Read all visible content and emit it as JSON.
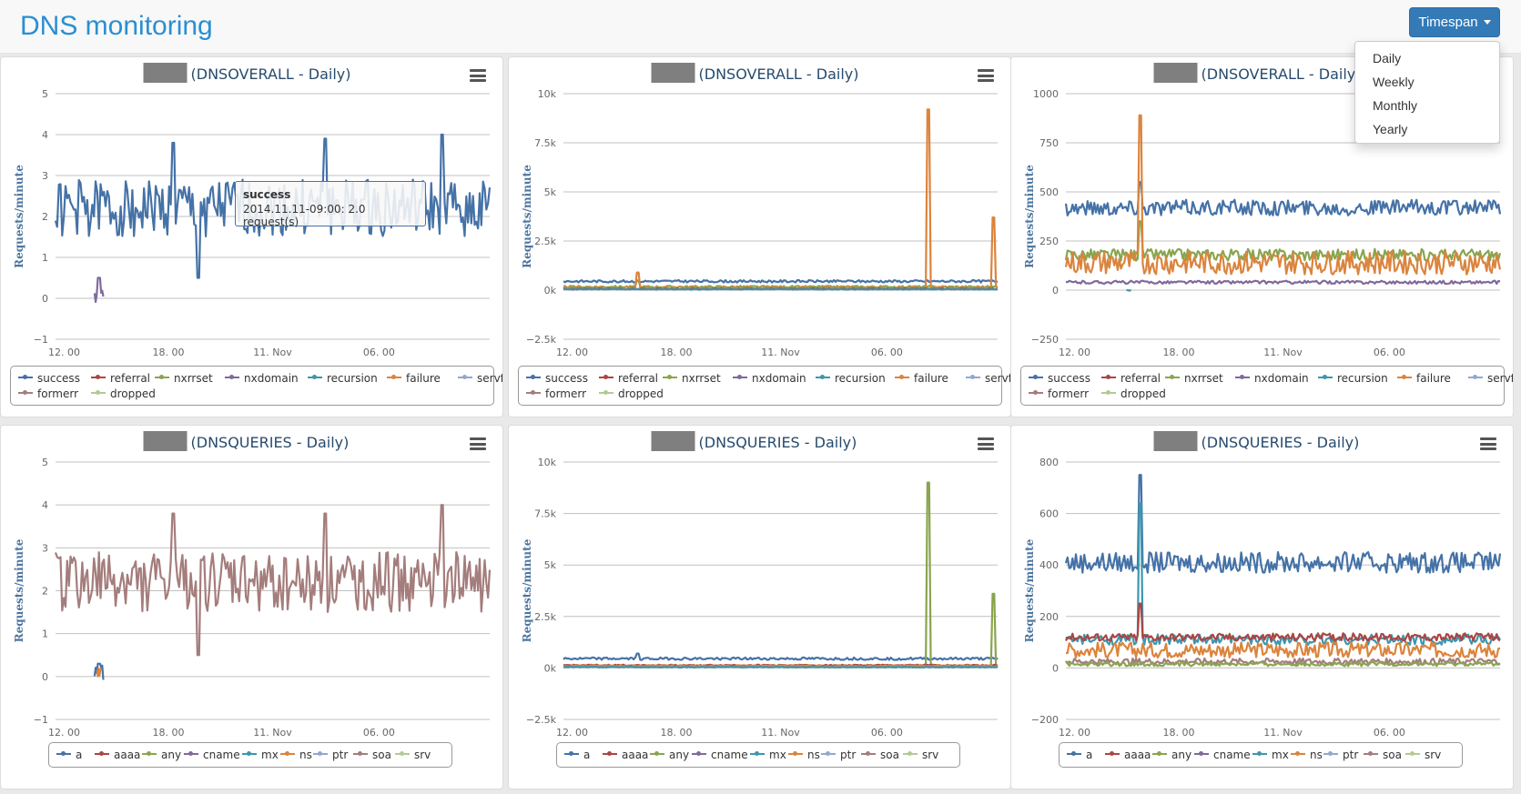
{
  "header": {
    "title": "DNS monitoring",
    "timespan_label": "Timespan",
    "timespan_options": [
      "Daily",
      "Weekly",
      "Monthly",
      "Yearly"
    ]
  },
  "tooltip": {
    "series": "success",
    "text": "2014.11.11-09:00: 2.0 request(s)"
  },
  "chart_data": [
    {
      "type": "line",
      "title": "(DNSOVERALL - Daily)",
      "ylabel": "Requests/minute",
      "ylim": [
        -1,
        5
      ],
      "yticks": [
        -1,
        0,
        1,
        2,
        3,
        4,
        5
      ],
      "ytick_labels": [
        "−1",
        "0",
        "1",
        "2",
        "3",
        "4",
        "5"
      ],
      "xtick_labels": [
        "12. 00",
        "18. 00",
        "11. Nov",
        "06. 00"
      ],
      "legend": [
        "success",
        "referral",
        "nxrrset",
        "nxdomain",
        "recursion",
        "failure",
        "servfail",
        "formerr",
        "dropped"
      ],
      "series": [
        {
          "name": "success",
          "color": "#4572a7",
          "base": 2.2,
          "noise": 0.7,
          "spikes": [
            [
              0.27,
              3.8
            ],
            [
              0.62,
              3.9
            ],
            [
              0.89,
              4.0
            ],
            [
              0.33,
              0.5
            ]
          ]
        },
        {
          "name": "nxdomain",
          "color": "#80699b",
          "partial": [
            0.09,
            0.11
          ],
          "base": 0.1,
          "noise": 0.2,
          "spikes": [
            [
              0.1,
              0.5
            ]
          ]
        }
      ]
    },
    {
      "type": "line",
      "title": "(DNSOVERALL - Daily)",
      "ylabel": "Requests/minute",
      "ylim": [
        -2500,
        10000
      ],
      "yticks": [
        -2500,
        0,
        2500,
        5000,
        7500,
        10000
      ],
      "ytick_labels": [
        "−2.5k",
        "0k",
        "2.5k",
        "5k",
        "7.5k",
        "10k"
      ],
      "xtick_labels": [
        "12. 00",
        "18. 00",
        "11. Nov",
        "06. 00"
      ],
      "legend": [
        "success",
        "referral",
        "nxrrset",
        "nxdomain",
        "recursion",
        "failure",
        "servfail",
        "formerr",
        "dropped"
      ],
      "series": [
        {
          "name": "success",
          "color": "#4572a7",
          "base": 450,
          "noise": 60,
          "spikes": []
        },
        {
          "name": "nxrrset",
          "color": "#89a54e",
          "base": 170,
          "noise": 50,
          "spikes": [
            [
              0.17,
              500
            ]
          ]
        },
        {
          "name": "failure",
          "color": "#db843d",
          "base": 120,
          "noise": 60,
          "spikes": [
            [
              0.17,
              900
            ],
            [
              0.84,
              9200
            ],
            [
              0.99,
              3700
            ]
          ]
        },
        {
          "name": "referral",
          "color": "#aa4643",
          "base": 60,
          "noise": 30,
          "spikes": []
        },
        {
          "name": "recursion",
          "color": "#3d96ae",
          "base": 40,
          "noise": 20,
          "spikes": []
        }
      ]
    },
    {
      "type": "line",
      "title": "(DNSOVERALL - Daily)",
      "ylabel": "Requests/minute",
      "ylim": [
        -250,
        1000
      ],
      "yticks": [
        -250,
        0,
        250,
        500,
        750,
        1000
      ],
      "ytick_labels": [
        "−250",
        "0",
        "250",
        "500",
        "750",
        "1000"
      ],
      "xtick_labels": [
        "12. 00",
        "18. 00",
        "11. Nov",
        "06. 00"
      ],
      "legend": [
        "success",
        "referral",
        "nxrrset",
        "nxdomain",
        "recursion",
        "failure",
        "servfail",
        "formerr",
        "dropped"
      ],
      "series": [
        {
          "name": "success",
          "color": "#4572a7",
          "base": 420,
          "noise": 40,
          "spikes": [
            [
              0.17,
              550
            ]
          ]
        },
        {
          "name": "nxrrset",
          "color": "#89a54e",
          "base": 180,
          "noise": 30,
          "spikes": [
            [
              0.17,
              350
            ]
          ]
        },
        {
          "name": "failure",
          "color": "#db843d",
          "base": 140,
          "noise": 60,
          "spikes": [
            [
              0.17,
              890
            ]
          ]
        },
        {
          "name": "nxdomain",
          "color": "#80699b",
          "base": 40,
          "noise": 8,
          "spikes": []
        },
        {
          "name": "recursion",
          "color": "#3d96ae",
          "partial": [
            0.14,
            0.15
          ],
          "base": 0,
          "noise": 3,
          "spikes": []
        }
      ]
    },
    {
      "type": "line",
      "title": "(DNSQUERIES - Daily)",
      "ylabel": "Requests/minute",
      "ylim": [
        -1,
        5
      ],
      "yticks": [
        -1,
        0,
        1,
        2,
        3,
        4,
        5
      ],
      "ytick_labels": [
        "−1",
        "0",
        "1",
        "2",
        "3",
        "4",
        "5"
      ],
      "xtick_labels": [
        "12. 00",
        "18. 00",
        "11. Nov",
        "06. 00"
      ],
      "legend": [
        "a",
        "aaaa",
        "any",
        "cname",
        "mx",
        "ns",
        "ptr",
        "soa",
        "srv"
      ],
      "series": [
        {
          "name": "soa",
          "color": "#a47d7c",
          "base": 2.2,
          "noise": 0.7,
          "spikes": [
            [
              0.27,
              3.8
            ],
            [
              0.62,
              3.8
            ],
            [
              0.89,
              4.0
            ],
            [
              0.33,
              0.5
            ]
          ]
        },
        {
          "name": "a",
          "color": "#4572a7",
          "partial": [
            0.09,
            0.11
          ],
          "base": 0.1,
          "noise": 0.2,
          "spikes": [
            [
              0.1,
              0.3
            ]
          ]
        },
        {
          "name": "ns",
          "color": "#db843d",
          "partial": [
            0.095,
            0.105
          ],
          "base": 0.1,
          "noise": 0.1,
          "spikes": []
        }
      ]
    },
    {
      "type": "line",
      "title": "(DNSQUERIES - Daily)",
      "ylabel": "Requests/minute",
      "ylim": [
        -2500,
        10000
      ],
      "yticks": [
        -2500,
        0,
        2500,
        5000,
        7500,
        10000
      ],
      "ytick_labels": [
        "−2.5k",
        "0k",
        "2.5k",
        "5k",
        "7.5k",
        "10k"
      ],
      "xtick_labels": [
        "12. 00",
        "18. 00",
        "11. Nov",
        "06. 00"
      ],
      "legend": [
        "a",
        "aaaa",
        "any",
        "cname",
        "mx",
        "ns",
        "ptr",
        "soa",
        "srv"
      ],
      "series": [
        {
          "name": "a",
          "color": "#4572a7",
          "base": 450,
          "noise": 60,
          "spikes": [
            [
              0.17,
              700
            ]
          ]
        },
        {
          "name": "any",
          "color": "#89a54e",
          "base": 60,
          "noise": 40,
          "spikes": [
            [
              0.84,
              9000
            ],
            [
              0.99,
              3600
            ]
          ]
        },
        {
          "name": "aaaa",
          "color": "#aa4643",
          "base": 130,
          "noise": 30,
          "spikes": []
        },
        {
          "name": "ns",
          "color": "#db843d",
          "base": 100,
          "noise": 40,
          "spikes": []
        },
        {
          "name": "mx",
          "color": "#3d96ae",
          "base": 40,
          "noise": 20,
          "spikes": []
        }
      ]
    },
    {
      "type": "line",
      "title": "(DNSQUERIES - Daily)",
      "ylabel": "Requests/minute",
      "ylim": [
        -200,
        800
      ],
      "yticks": [
        -200,
        0,
        200,
        400,
        600,
        800
      ],
      "ytick_labels": [
        "−200",
        "0",
        "200",
        "400",
        "600",
        "800"
      ],
      "xtick_labels": [
        "12. 00",
        "18. 00",
        "11. Nov",
        "06. 00"
      ],
      "legend": [
        "a",
        "aaaa",
        "any",
        "cname",
        "mx",
        "ns",
        "ptr",
        "soa",
        "srv"
      ],
      "series": [
        {
          "name": "a",
          "color": "#4572a7",
          "base": 410,
          "noise": 40,
          "spikes": [
            [
              0.17,
              750
            ]
          ]
        },
        {
          "name": "mx",
          "color": "#3d96ae",
          "base": 110,
          "noise": 20,
          "spikes": [
            [
              0.17,
              640
            ]
          ]
        },
        {
          "name": "aaaa",
          "color": "#aa4643",
          "base": 120,
          "noise": 15,
          "spikes": [
            [
              0.17,
              250
            ]
          ]
        },
        {
          "name": "ns",
          "color": "#db843d",
          "base": 70,
          "noise": 30,
          "spikes": []
        },
        {
          "name": "soa",
          "color": "#a47d7c",
          "base": 25,
          "noise": 12,
          "spikes": []
        },
        {
          "name": "any",
          "color": "#89a54e",
          "base": 15,
          "noise": 8,
          "spikes": []
        }
      ]
    }
  ],
  "legend_colors": {
    "success": "#4572a7",
    "referral": "#aa4643",
    "nxrrset": "#89a54e",
    "nxdomain": "#80699b",
    "recursion": "#3d96ae",
    "failure": "#db843d",
    "servfail": "#92a8cd",
    "formerr": "#a47d7c",
    "dropped": "#b5ca92",
    "a": "#4572a7",
    "aaaa": "#aa4643",
    "any": "#89a54e",
    "cname": "#80699b",
    "mx": "#3d96ae",
    "ns": "#db843d",
    "ptr": "#92a8cd",
    "soa": "#a47d7c",
    "srv": "#b5ca92"
  }
}
